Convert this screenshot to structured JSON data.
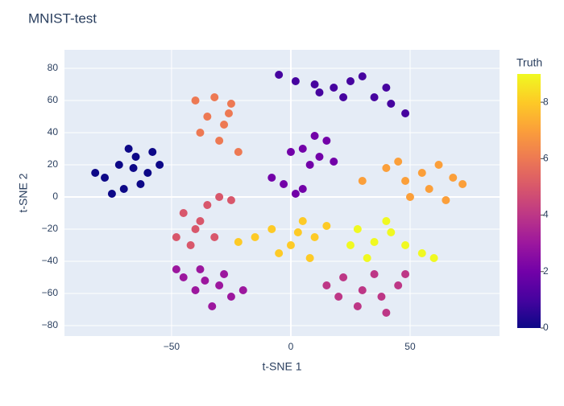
{
  "chart_data": {
    "type": "scatter",
    "title": "MNIST-test",
    "x_label": "t-SNE 1",
    "y_label": "t-SNE 2",
    "x": [
      -78,
      -72,
      -65,
      -60,
      -70,
      -63,
      -55,
      -82,
      -68,
      -75,
      -58,
      -66,
      -5,
      2,
      10,
      18,
      25,
      30,
      35,
      42,
      48,
      22,
      12,
      40,
      5,
      12,
      15,
      0,
      8,
      -3,
      5,
      -8,
      2,
      18,
      10,
      -45,
      -38,
      -30,
      -25,
      -40,
      -33,
      -48,
      -28,
      -20,
      -36,
      15,
      22,
      30,
      38,
      45,
      35,
      28,
      40,
      20,
      48,
      -45,
      -40,
      -35,
      -32,
      -42,
      -38,
      -30,
      -48,
      -25,
      -40,
      -32,
      -25,
      -35,
      -28,
      -30,
      -22,
      -38,
      -26,
      40,
      48,
      55,
      62,
      68,
      58,
      50,
      65,
      45,
      72,
      30,
      -15,
      -8,
      0,
      5,
      10,
      -5,
      3,
      -22,
      15,
      8,
      28,
      35,
      42,
      48,
      55,
      32,
      40,
      60,
      25
    ],
    "y": [
      12,
      20,
      25,
      15,
      5,
      8,
      20,
      15,
      30,
      2,
      28,
      18,
      76,
      72,
      70,
      68,
      72,
      75,
      62,
      58,
      52,
      62,
      65,
      68,
      30,
      25,
      35,
      28,
      20,
      8,
      5,
      12,
      2,
      22,
      38,
      -50,
      -45,
      -55,
      -62,
      -58,
      -68,
      -45,
      -48,
      -58,
      -52,
      -55,
      -50,
      -58,
      -62,
      -55,
      -48,
      -68,
      -72,
      -62,
      -48,
      -10,
      -20,
      -5,
      -25,
      -30,
      -15,
      0,
      -25,
      -2,
      60,
      62,
      58,
      50,
      45,
      35,
      28,
      40,
      52,
      18,
      10,
      15,
      20,
      12,
      5,
      0,
      -2,
      22,
      8,
      10,
      -25,
      -20,
      -30,
      -15,
      -25,
      -35,
      -22,
      -28,
      -18,
      -38,
      -20,
      -28,
      -22,
      -30,
      -35,
      -38,
      -15,
      -38,
      -30
    ],
    "color_values": [
      0,
      0,
      0,
      0,
      0,
      0,
      0,
      0,
      0,
      0,
      0,
      0,
      1,
      1,
      1,
      1,
      1,
      1,
      1,
      1,
      1,
      1,
      1,
      1,
      2,
      2,
      2,
      2,
      2,
      2,
      2,
      2,
      2,
      2,
      2,
      3,
      3,
      3,
      3,
      3,
      3,
      3,
      3,
      3,
      3,
      4,
      4,
      4,
      4,
      4,
      4,
      4,
      4,
      4,
      4,
      5,
      5,
      5,
      5,
      5,
      5,
      5,
      5,
      5,
      6,
      6,
      6,
      6,
      6,
      6,
      6,
      6,
      6,
      7,
      7,
      7,
      7,
      7,
      7,
      7,
      7,
      7,
      7,
      7,
      8,
      8,
      8,
      8,
      8,
      8,
      8,
      8,
      8,
      8,
      9,
      9,
      9,
      9,
      9,
      9,
      9,
      9,
      9
    ],
    "colorscale": [
      "#0d0887",
      "#46039f",
      "#7201a8",
      "#9c179e",
      "#bd3786",
      "#d8576b",
      "#ed7953",
      "#fb9f3a",
      "#fdca26",
      "#f0f921"
    ],
    "clim": [
      0,
      9
    ],
    "colorbar_title": "Truth",
    "colorbar_ticks": [
      0,
      2,
      4,
      6,
      8
    ],
    "xlim": [
      -94.9,
      87.5
    ],
    "ylim": [
      -86.5,
      91.5
    ],
    "xticks": [
      {
        "value": -50,
        "label": "−50"
      },
      0,
      50
    ],
    "yticks": [
      {
        "value": -80,
        "label": "−80"
      },
      {
        "value": -60,
        "label": "−60"
      },
      {
        "value": -40,
        "label": "−40"
      },
      {
        "value": -20,
        "label": "−20"
      },
      0,
      20,
      40,
      60,
      80
    ],
    "grid": true
  }
}
